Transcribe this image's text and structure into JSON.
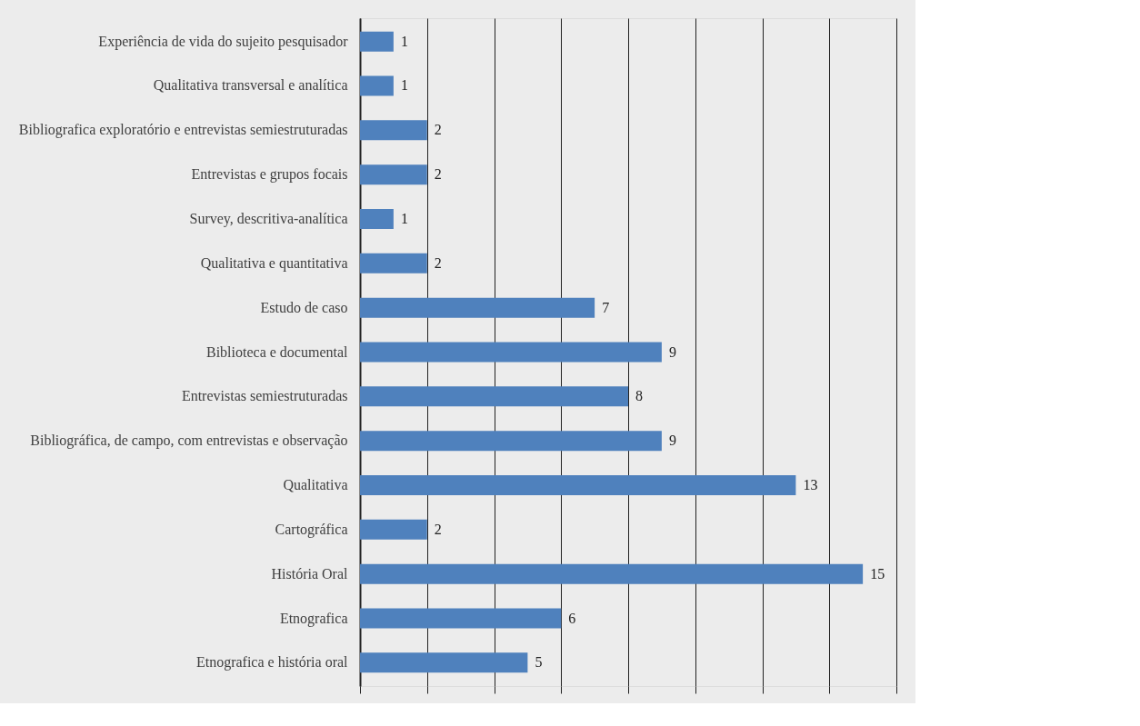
{
  "chart_data": {
    "type": "bar",
    "orientation": "horizontal",
    "categories": [
      "Experiência de vida do sujeito pesquisador",
      "Qualitativa transversal e analítica",
      "Bibliografica exploratório e entrevistas semiestruturadas",
      "Entrevistas e grupos focais",
      "Survey, descritiva-analítica",
      "Qualitativa e quantitativa",
      "Estudo de caso",
      "Biblioteca e documental",
      "Entrevistas semiestruturadas",
      "Bibliográfica, de campo, com entrevistas e observação",
      "Qualitativa",
      "Cartográfica",
      "História Oral",
      "Etnografica",
      "Etnografica e história oral"
    ],
    "values": [
      1,
      1,
      2,
      2,
      1,
      2,
      7,
      9,
      8,
      9,
      13,
      2,
      15,
      6,
      5
    ],
    "color": "#4f81bd",
    "xlim": [
      0,
      16
    ],
    "xticks": [
      {
        "value": 0,
        "label": null
      },
      {
        "value": 2,
        "label": null
      },
      {
        "value": 4,
        "label": null
      },
      {
        "value": 6,
        "label": null
      },
      {
        "value": 8,
        "label": null
      },
      {
        "value": 10,
        "label": null
      },
      {
        "value": 12,
        "label": null
      },
      {
        "value": 14,
        "label": null
      },
      {
        "value": 16,
        "label": null
      }
    ],
    "tick_labels": "y",
    "grid": "x",
    "data_labels": true
  }
}
